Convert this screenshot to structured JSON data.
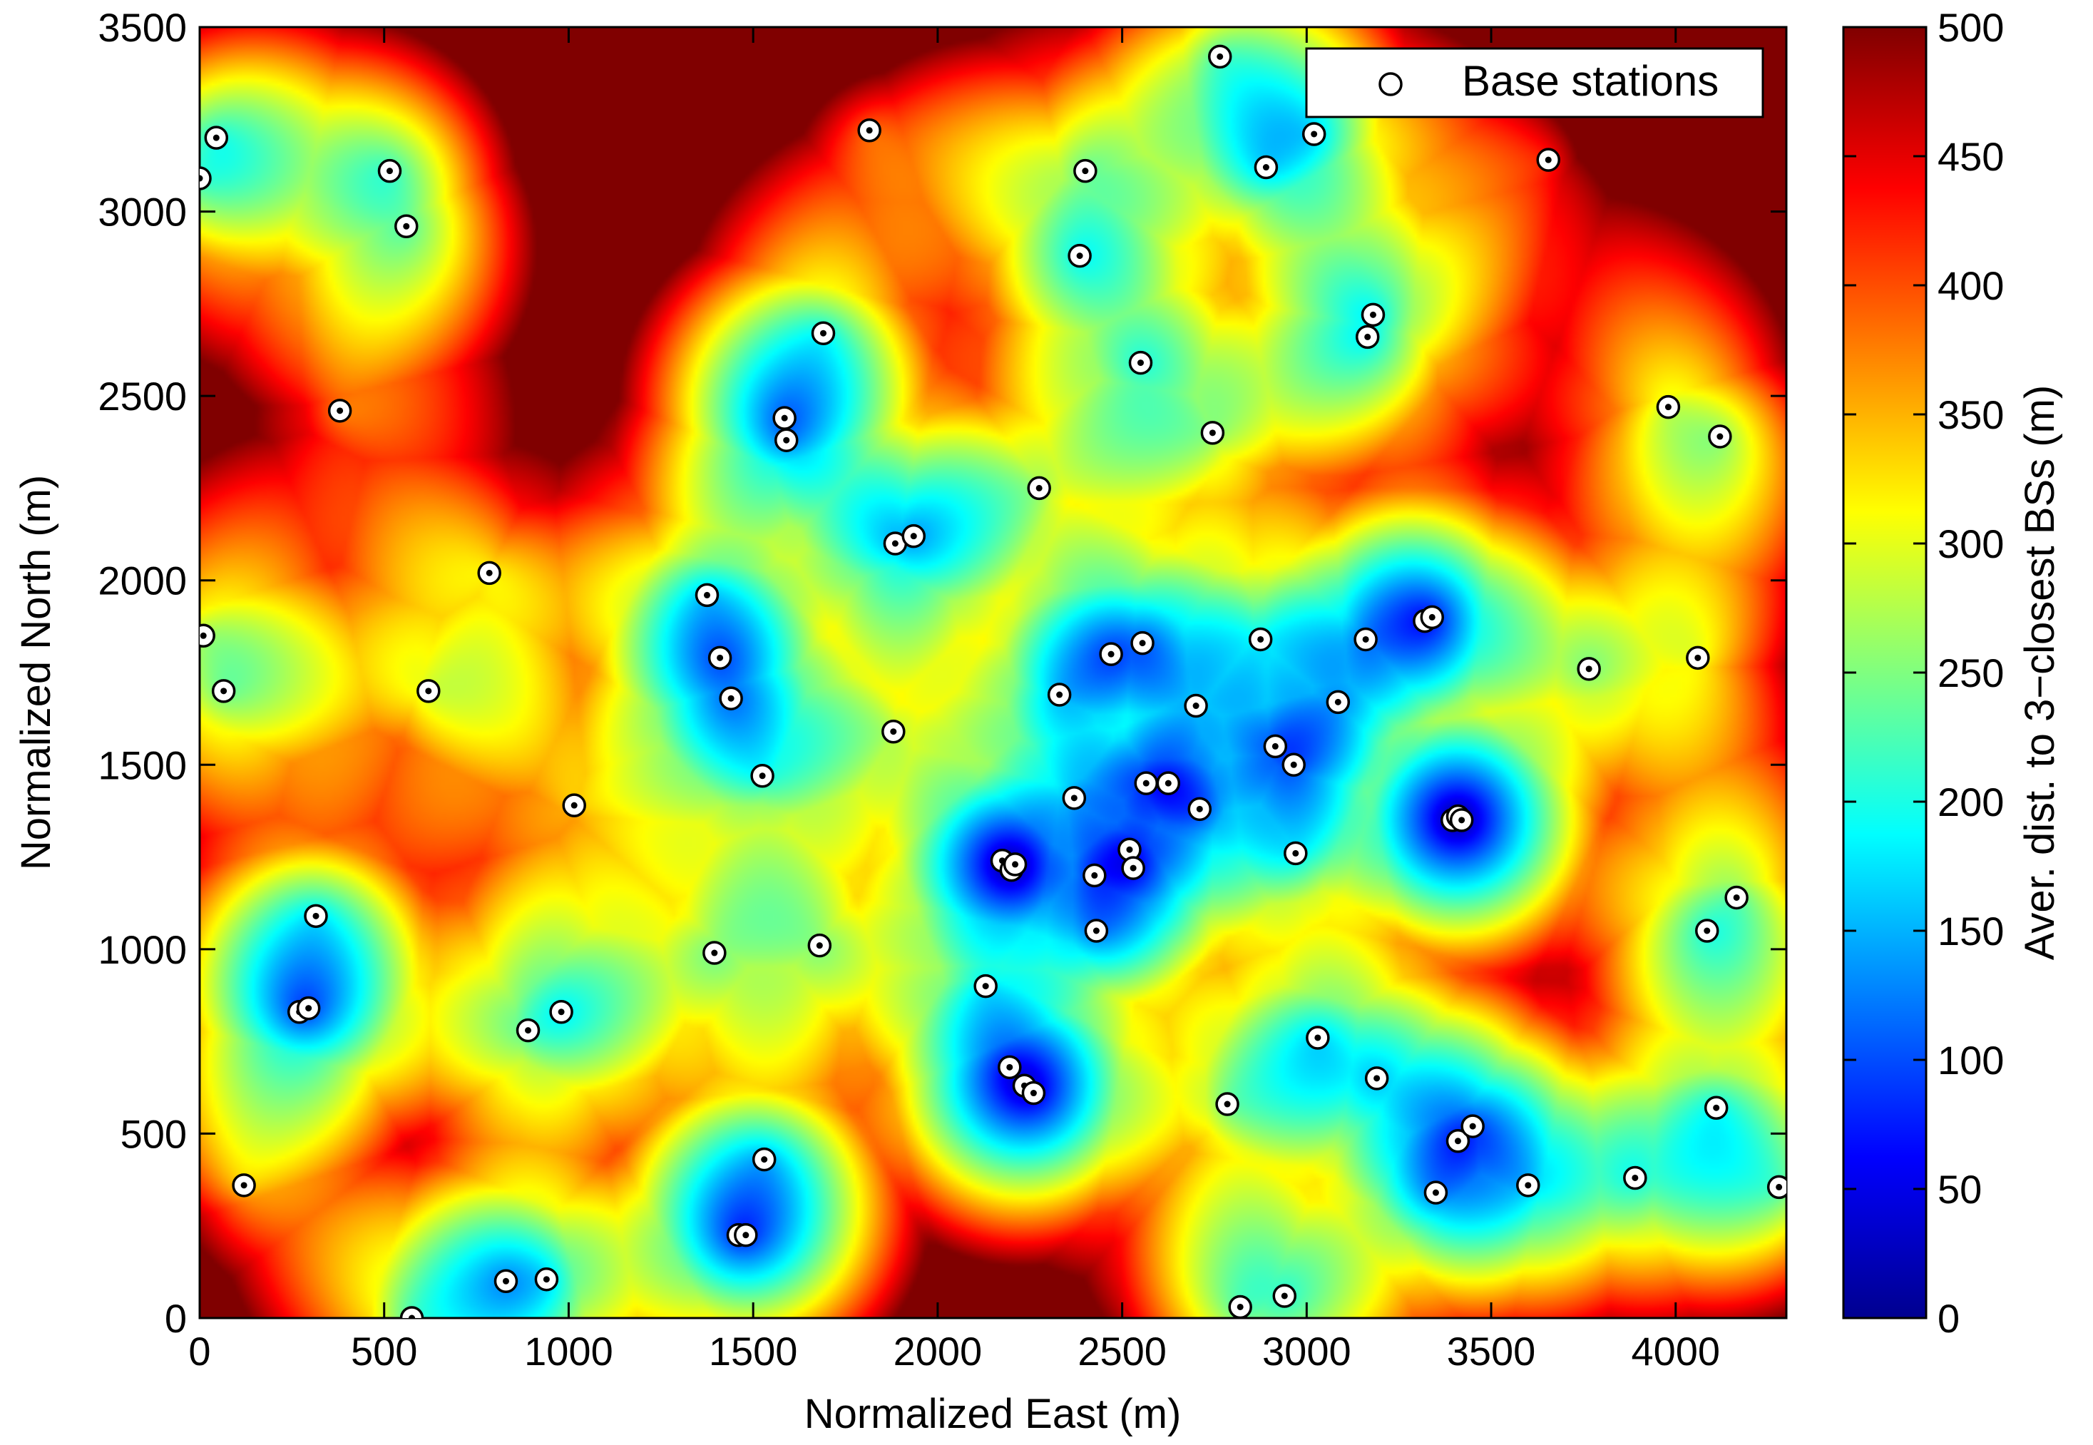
{
  "chart_data": {
    "type": "heatmap",
    "title": "",
    "xlabel": "Normalized East (m)",
    "ylabel": "Normalized North (m)",
    "colorbar_label": "Aver. dist. to 3−closest BSs (m)",
    "xlim": [
      0,
      4300
    ],
    "ylim": [
      0,
      3500
    ],
    "clim": [
      0,
      500
    ],
    "colormap": "jet",
    "xticks": [
      0,
      500,
      1000,
      1500,
      2000,
      2500,
      3000,
      3500,
      4000
    ],
    "yticks": [
      0,
      500,
      1000,
      1500,
      2000,
      2500,
      3000,
      3500
    ],
    "cticks": [
      0,
      50,
      100,
      150,
      200,
      250,
      300,
      350,
      400,
      450,
      500
    ],
    "legend": {
      "label": "Base stations",
      "position": "top-right"
    },
    "grid": false,
    "series": [
      {
        "name": "Base stations",
        "marker": "circle",
        "points": [
          [
            0,
            3090
          ],
          [
            45,
            3200
          ],
          [
            10,
            1850
          ],
          [
            65,
            1700
          ],
          [
            120,
            360
          ],
          [
            270,
            830
          ],
          [
            295,
            840
          ],
          [
            315,
            1090
          ],
          [
            380,
            2460
          ],
          [
            515,
            3110
          ],
          [
            560,
            2960
          ],
          [
            620,
            1700
          ],
          [
            575,
            0
          ],
          [
            785,
            2020
          ],
          [
            890,
            780
          ],
          [
            980,
            830
          ],
          [
            1015,
            1390
          ],
          [
            830,
            100
          ],
          [
            940,
            105
          ],
          [
            1375,
            1960
          ],
          [
            1410,
            1790
          ],
          [
            1440,
            1680
          ],
          [
            1525,
            1470
          ],
          [
            1395,
            990
          ],
          [
            1530,
            430
          ],
          [
            1460,
            225
          ],
          [
            1480,
            225
          ],
          [
            1585,
            2440
          ],
          [
            1590,
            2380
          ],
          [
            1690,
            2670
          ],
          [
            1815,
            3220
          ],
          [
            1880,
            1590
          ],
          [
            1885,
            2100
          ],
          [
            1935,
            2120
          ],
          [
            1680,
            1010
          ],
          [
            2130,
            900
          ],
          [
            2175,
            1240
          ],
          [
            2200,
            1215
          ],
          [
            2210,
            1230
          ],
          [
            2195,
            680
          ],
          [
            2235,
            630
          ],
          [
            2260,
            610
          ],
          [
            2275,
            2250
          ],
          [
            2330,
            1690
          ],
          [
            2370,
            1410
          ],
          [
            2385,
            2880
          ],
          [
            2400,
            3110
          ],
          [
            2425,
            1200
          ],
          [
            2430,
            1050
          ],
          [
            2470,
            1800
          ],
          [
            2520,
            1270
          ],
          [
            2530,
            1220
          ],
          [
            2550,
            2590
          ],
          [
            2555,
            1830
          ],
          [
            2565,
            1450
          ],
          [
            2625,
            1450
          ],
          [
            2700,
            1660
          ],
          [
            2710,
            1380
          ],
          [
            2745,
            2400
          ],
          [
            2765,
            3420
          ],
          [
            2785,
            580
          ],
          [
            2820,
            30
          ],
          [
            2875,
            1840
          ],
          [
            2890,
            3120
          ],
          [
            2915,
            1550
          ],
          [
            2940,
            60
          ],
          [
            2965,
            1500
          ],
          [
            2970,
            1260
          ],
          [
            3020,
            3210
          ],
          [
            3030,
            760
          ],
          [
            3085,
            1670
          ],
          [
            3160,
            1840
          ],
          [
            3165,
            2660
          ],
          [
            3180,
            2720
          ],
          [
            3190,
            650
          ],
          [
            3320,
            1890
          ],
          [
            3340,
            1900
          ],
          [
            3350,
            340
          ],
          [
            3395,
            1350
          ],
          [
            3410,
            1360
          ],
          [
            3420,
            1350
          ],
          [
            3410,
            480
          ],
          [
            3450,
            520
          ],
          [
            3600,
            360
          ],
          [
            3655,
            3140
          ],
          [
            3765,
            1760
          ],
          [
            3890,
            380
          ],
          [
            3980,
            2470
          ],
          [
            4060,
            1790
          ],
          [
            4085,
            1050
          ],
          [
            4110,
            570
          ],
          [
            4120,
            2390
          ],
          [
            4165,
            1140
          ],
          [
            4280,
            355
          ]
        ]
      }
    ]
  }
}
